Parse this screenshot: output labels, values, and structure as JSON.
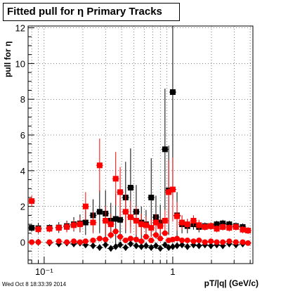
{
  "chart_data": {
    "type": "scatter",
    "title": "Fitted pull for  η  Primary Tracks",
    "xlabel": "pT/|q| (GeV/c)",
    "ylabel": "pull for η",
    "x_scale": "log",
    "xlim": [
      0.075,
      4.2
    ],
    "ylim": [
      -1.2,
      12.1
    ],
    "grid": true,
    "x_ticks": [
      {
        "value": 0.1,
        "label": "10⁻¹"
      },
      {
        "value": 1,
        "label": "1"
      }
    ],
    "y_ticks": [
      0,
      2,
      4,
      6,
      8,
      10,
      12
    ],
    "series": [
      {
        "color": "#000000",
        "marker": "square",
        "points": [
          [
            0.08,
            0.8,
            0.2
          ],
          [
            0.09,
            0.78,
            0.3
          ],
          [
            0.11,
            0.8,
            0.2
          ],
          [
            0.13,
            0.82,
            0.3
          ],
          [
            0.15,
            0.9,
            0.3
          ],
          [
            0.17,
            1.0,
            0.4
          ],
          [
            0.19,
            1.05,
            0.5
          ],
          [
            0.21,
            1.1,
            0.7
          ],
          [
            0.24,
            1.5,
            0.9
          ],
          [
            0.27,
            1.7,
            1.2
          ],
          [
            0.3,
            1.6,
            1.3
          ],
          [
            0.33,
            1.2,
            1.0
          ],
          [
            0.36,
            1.3,
            1.4
          ],
          [
            0.39,
            1.25,
            1.2
          ],
          [
            0.43,
            2.5,
            2.0
          ],
          [
            0.47,
            3.05,
            2.2
          ],
          [
            0.52,
            1.7,
            1.5
          ],
          [
            0.57,
            1.1,
            0.9
          ],
          [
            0.62,
            1.0,
            0.8
          ],
          [
            0.68,
            2.5,
            2.2
          ],
          [
            0.74,
            1.4,
            1.2
          ],
          [
            0.8,
            1.1,
            1.0
          ],
          [
            0.87,
            5.2,
            3.4
          ],
          [
            0.93,
            2.9,
            2.5
          ],
          [
            1.0,
            8.4,
            6.0
          ],
          [
            1.08,
            1.5,
            1.3
          ],
          [
            1.18,
            1.0,
            0.5
          ],
          [
            1.3,
            0.9,
            0.4
          ],
          [
            1.45,
            1.0,
            0.3
          ],
          [
            1.6,
            0.85,
            0.3
          ],
          [
            1.78,
            0.9,
            0.2
          ],
          [
            1.98,
            0.9,
            0.2
          ],
          [
            2.2,
            1.0,
            0.2
          ],
          [
            2.45,
            1.05,
            0.2
          ],
          [
            2.75,
            1.0,
            0.2
          ],
          [
            3.1,
            0.9,
            0.2
          ],
          [
            3.5,
            0.85,
            0.2
          ]
        ]
      },
      {
        "color": "#ff0000",
        "marker": "square",
        "points": [
          [
            0.08,
            2.3,
            0.3
          ],
          [
            0.09,
            0.72,
            0.2
          ],
          [
            0.11,
            0.75,
            0.2
          ],
          [
            0.13,
            0.8,
            0.2
          ],
          [
            0.15,
            0.85,
            0.3
          ],
          [
            0.17,
            0.95,
            0.3
          ],
          [
            0.19,
            1.0,
            0.4
          ],
          [
            0.21,
            2.0,
            0.8
          ],
          [
            0.24,
            1.1,
            0.6
          ],
          [
            0.27,
            4.3,
            1.5
          ],
          [
            0.3,
            1.2,
            0.8
          ],
          [
            0.33,
            1.0,
            0.6
          ],
          [
            0.36,
            3.55,
            1.5
          ],
          [
            0.39,
            2.8,
            1.4
          ],
          [
            0.43,
            1.7,
            1.0
          ],
          [
            0.47,
            1.4,
            0.9
          ],
          [
            0.52,
            1.2,
            0.8
          ],
          [
            0.57,
            1.0,
            0.6
          ],
          [
            0.62,
            0.95,
            0.5
          ],
          [
            0.68,
            0.8,
            0.5
          ],
          [
            0.74,
            1.1,
            0.5
          ],
          [
            0.8,
            0.9,
            0.4
          ],
          [
            0.87,
            1.2,
            0.6
          ],
          [
            0.93,
            2.8,
            1.8
          ],
          [
            1.0,
            2.95,
            1.8
          ],
          [
            1.08,
            1.45,
            0.8
          ],
          [
            1.18,
            1.1,
            0.4
          ],
          [
            1.3,
            1.0,
            0.3
          ],
          [
            1.45,
            1.2,
            0.3
          ],
          [
            1.6,
            0.95,
            0.3
          ],
          [
            1.78,
            0.85,
            0.2
          ],
          [
            1.98,
            0.9,
            0.2
          ],
          [
            2.2,
            0.75,
            0.2
          ],
          [
            2.45,
            0.85,
            0.2
          ],
          [
            2.75,
            0.8,
            0.2
          ],
          [
            3.1,
            0.85,
            0.2
          ],
          [
            3.5,
            0.7,
            0.2
          ],
          [
            3.85,
            0.65,
            0.2
          ]
        ]
      },
      {
        "color": "#000000",
        "marker": "diamond",
        "points": [
          [
            0.09,
            0.0
          ],
          [
            0.11,
            -0.05
          ],
          [
            0.13,
            -0.1
          ],
          [
            0.15,
            -0.05
          ],
          [
            0.17,
            -0.1
          ],
          [
            0.19,
            -0.05
          ],
          [
            0.21,
            -0.15
          ],
          [
            0.24,
            -0.2
          ],
          [
            0.27,
            -0.3
          ],
          [
            0.3,
            -0.15
          ],
          [
            0.33,
            -0.35
          ],
          [
            0.36,
            -0.25
          ],
          [
            0.39,
            -0.15
          ],
          [
            0.43,
            -0.3
          ],
          [
            0.47,
            -0.1
          ],
          [
            0.52,
            -0.2
          ],
          [
            0.57,
            -0.25
          ],
          [
            0.62,
            -0.2
          ],
          [
            0.68,
            -0.3
          ],
          [
            0.74,
            -0.2
          ],
          [
            0.8,
            -0.35
          ],
          [
            0.87,
            -0.15
          ],
          [
            0.93,
            -0.3
          ],
          [
            1.0,
            -0.25
          ],
          [
            1.08,
            -0.2
          ],
          [
            1.18,
            -0.15
          ],
          [
            1.3,
            -0.25
          ],
          [
            1.45,
            -0.15
          ],
          [
            1.6,
            -0.2
          ],
          [
            1.78,
            -0.15
          ],
          [
            1.98,
            -0.2
          ],
          [
            2.2,
            -0.15
          ],
          [
            2.45,
            -0.2
          ],
          [
            2.75,
            -0.1
          ],
          [
            3.1,
            -0.15
          ],
          [
            3.5,
            -0.1
          ]
        ]
      },
      {
        "color": "#ff0000",
        "marker": "circle",
        "points": [
          [
            0.08,
            0.0
          ],
          [
            0.09,
            0.0
          ],
          [
            0.11,
            0.0
          ],
          [
            0.13,
            0.05
          ],
          [
            0.15,
            0.0
          ],
          [
            0.17,
            0.05
          ],
          [
            0.19,
            0.0
          ],
          [
            0.21,
            0.05
          ],
          [
            0.24,
            0.1
          ],
          [
            0.27,
            0.2
          ],
          [
            0.3,
            0.15
          ],
          [
            0.33,
            0.4
          ],
          [
            0.36,
            0.6
          ],
          [
            0.39,
            0.3
          ],
          [
            0.43,
            0.1
          ],
          [
            0.47,
            0.2
          ],
          [
            0.52,
            0.15
          ],
          [
            0.57,
            0.05
          ],
          [
            0.62,
            0.3
          ],
          [
            0.68,
            0.1
          ],
          [
            0.74,
            0.4
          ],
          [
            0.8,
            0.2
          ],
          [
            0.87,
            0.5
          ],
          [
            0.93,
            0.1
          ],
          [
            1.0,
            0.15
          ],
          [
            1.08,
            0.2
          ],
          [
            1.18,
            0.1
          ],
          [
            1.3,
            0.1
          ],
          [
            1.45,
            0.05
          ],
          [
            1.6,
            0.1
          ],
          [
            1.78,
            0.0
          ],
          [
            1.98,
            0.05
          ],
          [
            2.2,
            0.0
          ],
          [
            2.45,
            0.0
          ],
          [
            2.75,
            0.05
          ],
          [
            3.1,
            0.0
          ],
          [
            3.5,
            0.0
          ],
          [
            3.85,
            -0.05
          ]
        ]
      }
    ]
  },
  "footer": {
    "timestamp": "Wed Oct  8 18:33:39 2014"
  }
}
